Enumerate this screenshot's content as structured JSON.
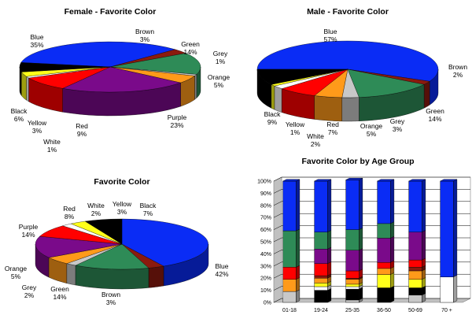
{
  "colors": {
    "Blue": "#0a2cf5",
    "Brown": "#8b1a0e",
    "Green": "#2e8b57",
    "Grey": "#c8c8c8",
    "Orange": "#ff9a1a",
    "Purple": "#7a0a8a",
    "Red": "#ff0000",
    "White": "#ffffff",
    "Yellow": "#ffff1a",
    "Black": "#000000"
  },
  "chart_data": [
    {
      "type": "pie",
      "title": "Female - Favorite Color",
      "slices": [
        {
          "name": "Blue",
          "value": 35,
          "label": "35%"
        },
        {
          "name": "Brown",
          "value": 3,
          "label": "3%"
        },
        {
          "name": "Green",
          "value": 14,
          "label": "14%"
        },
        {
          "name": "Grey",
          "value": 1,
          "label": "1%"
        },
        {
          "name": "Orange",
          "value": 5,
          "label": "5%"
        },
        {
          "name": "Purple",
          "value": 23,
          "label": "23%"
        },
        {
          "name": "Red",
          "value": 9,
          "label": "9%"
        },
        {
          "name": "White",
          "value": 1,
          "label": "1%"
        },
        {
          "name": "Yellow",
          "value": 3,
          "label": "3%"
        },
        {
          "name": "Black",
          "value": 6,
          "label": "6%"
        }
      ]
    },
    {
      "type": "pie",
      "title": "Male - Favorite Color",
      "slices": [
        {
          "name": "Blue",
          "value": 57,
          "label": "57%"
        },
        {
          "name": "Brown",
          "value": 2,
          "label": "2%"
        },
        {
          "name": "Green",
          "value": 14,
          "label": "14%"
        },
        {
          "name": "Grey",
          "value": 3,
          "label": "3%"
        },
        {
          "name": "Orange",
          "value": 5,
          "label": "5%"
        },
        {
          "name": "Red",
          "value": 7,
          "label": "7%"
        },
        {
          "name": "White",
          "value": 2,
          "label": "2%"
        },
        {
          "name": "Yellow",
          "value": 1,
          "label": "1%"
        },
        {
          "name": "Black",
          "value": 9,
          "label": "9%"
        }
      ]
    },
    {
      "type": "pie",
      "title": "Favorite Color",
      "slices": [
        {
          "name": "Blue",
          "value": 42,
          "label": "42%"
        },
        {
          "name": "Brown",
          "value": 3,
          "label": "3%"
        },
        {
          "name": "Green",
          "value": 14,
          "label": "14%"
        },
        {
          "name": "Grey",
          "value": 2,
          "label": "2%"
        },
        {
          "name": "Orange",
          "value": 5,
          "label": "5%"
        },
        {
          "name": "Purple",
          "value": 14,
          "label": "14%"
        },
        {
          "name": "Red",
          "value": 8,
          "label": "8%"
        },
        {
          "name": "White",
          "value": 2,
          "label": "2%"
        },
        {
          "name": "Yellow",
          "value": 3,
          "label": "3%"
        },
        {
          "name": "Black",
          "value": 7,
          "label": "7%"
        }
      ]
    },
    {
      "type": "bar",
      "stacked": true,
      "percent": true,
      "title": "Favorite Color by Age Group",
      "categories": [
        "01-18",
        "19-24",
        "25-35",
        "36-50",
        "50-69",
        "70 +"
      ],
      "y_ticks": [
        "0%",
        "10%",
        "20%",
        "30%",
        "40%",
        "50%",
        "60%",
        "70%",
        "80%",
        "90%",
        "100%"
      ],
      "ylim": [
        0,
        100
      ],
      "series": [
        {
          "name": "Grey",
          "values": [
            9,
            0,
            2,
            0,
            6,
            0
          ]
        },
        {
          "name": "Black",
          "values": [
            0,
            10,
            9,
            12,
            6,
            0
          ]
        },
        {
          "name": "White",
          "values": [
            0,
            3,
            2,
            0,
            0,
            21
          ]
        },
        {
          "name": "Yellow",
          "values": [
            0,
            3,
            2,
            11,
            7,
            0
          ]
        },
        {
          "name": "Orange",
          "values": [
            10,
            4,
            4,
            5,
            7,
            0
          ]
        },
        {
          "name": "Brown",
          "values": [
            0,
            2,
            1,
            0,
            3,
            0
          ]
        },
        {
          "name": "Red",
          "values": [
            10,
            10,
            6,
            5,
            6,
            0
          ]
        },
        {
          "name": "Purple",
          "values": [
            0,
            12,
            17,
            20,
            23,
            0
          ]
        },
        {
          "name": "Green",
          "values": [
            30,
            14,
            17,
            12,
            0,
            0
          ]
        },
        {
          "name": "Blue",
          "values": [
            41,
            42,
            41,
            35,
            42,
            79
          ]
        }
      ]
    }
  ]
}
